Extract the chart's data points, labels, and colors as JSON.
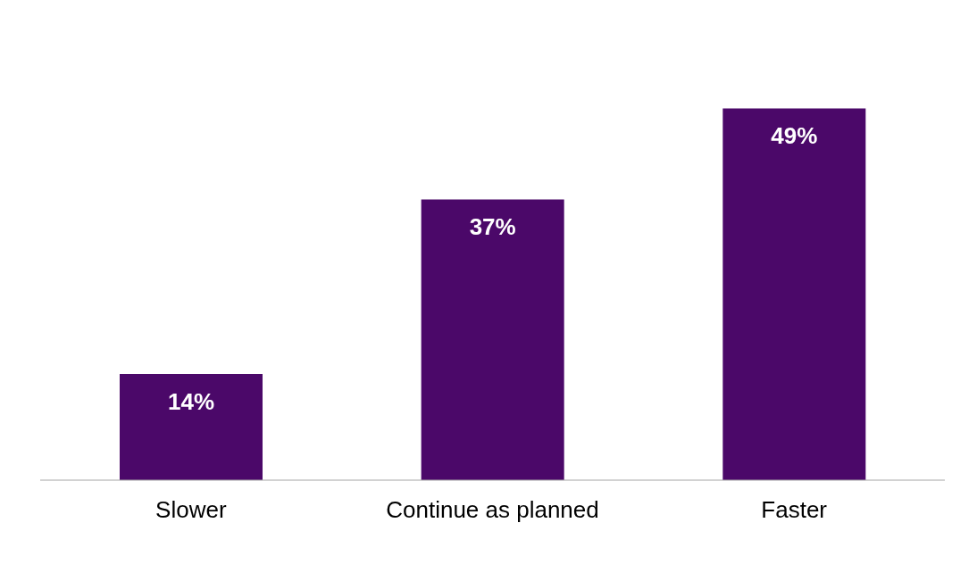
{
  "chart_data": {
    "type": "bar",
    "categories": [
      "Slower",
      "Continue as planned",
      "Faster"
    ],
    "values": [
      14,
      37,
      49
    ],
    "value_labels": [
      "14%",
      "37%",
      "49%"
    ],
    "color": "#4b0869"
  }
}
